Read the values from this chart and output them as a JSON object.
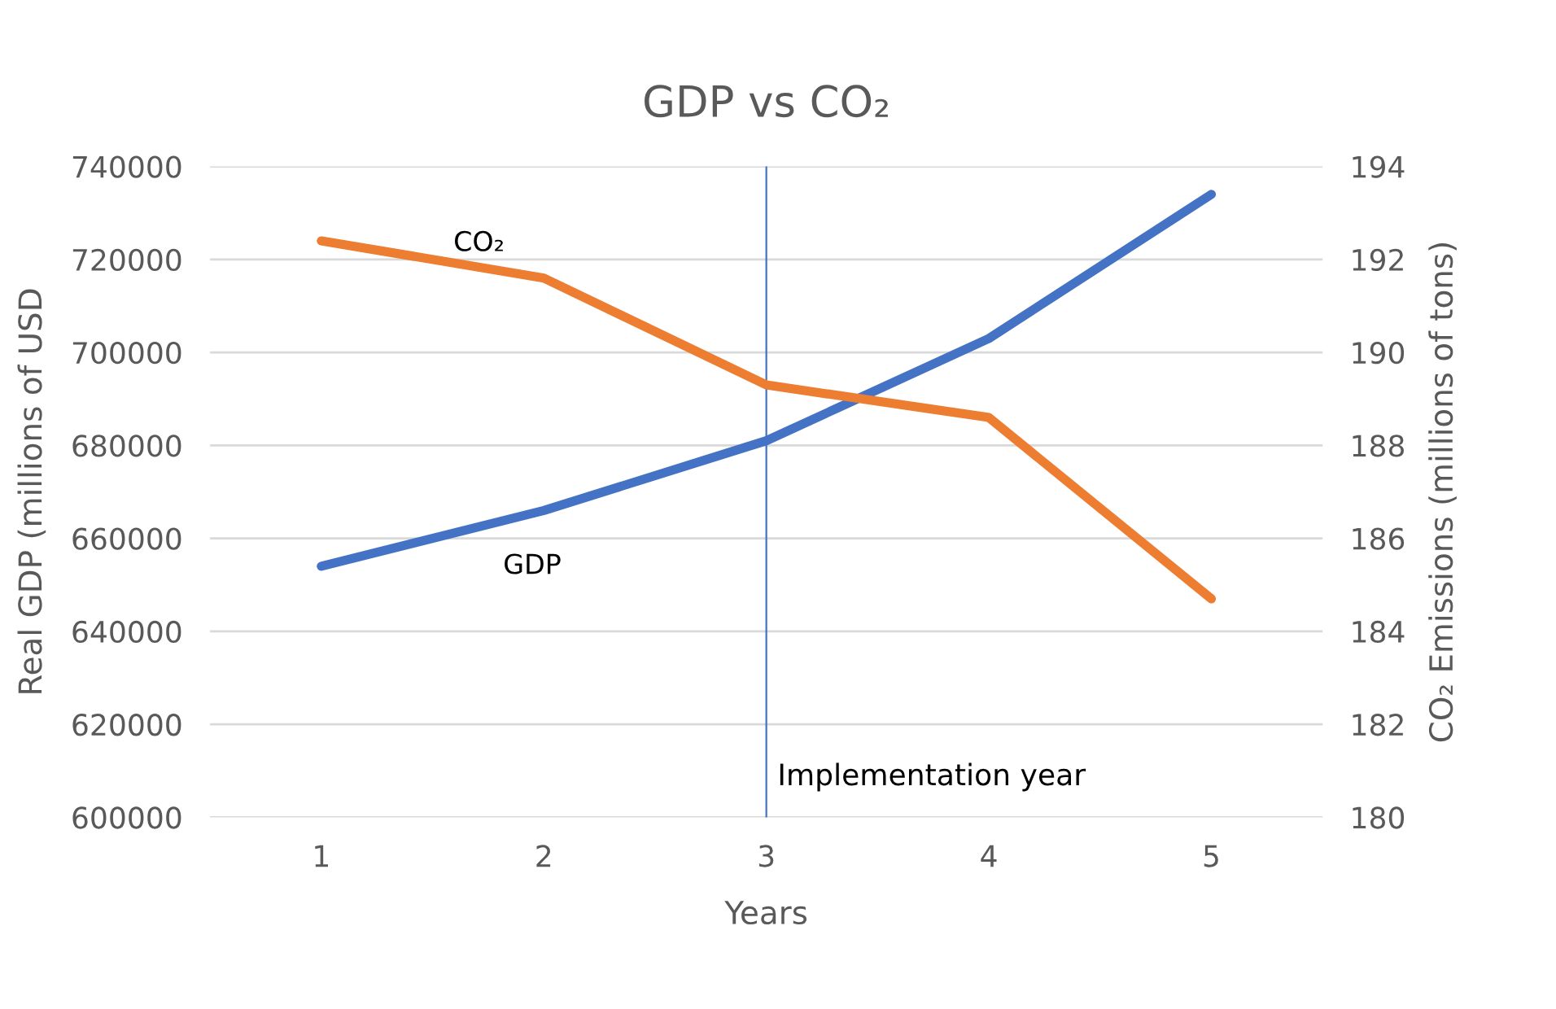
{
  "chart_data": {
    "type": "line",
    "title": "GDP vs CO₂",
    "xlabel": "Years",
    "ylabel": "Real GDP (millions of USD",
    "y2label": "CO₂ Emissions (millions of tons)",
    "x": [
      1,
      2,
      3,
      4,
      5
    ],
    "xlim": [
      0.5,
      5.5
    ],
    "xticks": [
      1,
      2,
      3,
      4,
      5
    ],
    "ylim": [
      600000,
      740000
    ],
    "yticks": [
      600000,
      620000,
      640000,
      660000,
      680000,
      700000,
      720000,
      740000
    ],
    "y2lim": [
      180,
      194
    ],
    "y2ticks": [
      180,
      182,
      184,
      186,
      188,
      190,
      192,
      194
    ],
    "series": [
      {
        "name": "GDP",
        "color": "#4472c4",
        "values": [
          654000,
          666000,
          681000,
          703000,
          734000
        ]
      },
      {
        "name": "CO₂",
        "color": "#ed7d31",
        "axis": "y2",
        "values": [
          192.4,
          191.6,
          189.3,
          188.6,
          184.7
        ]
      }
    ],
    "ref_lines": [
      {
        "axis": "x",
        "value": 3,
        "label": "Implementation year",
        "color": "#4472c4"
      }
    ],
    "grid": "y",
    "legend": false,
    "marker": "none",
    "line_style": "solid"
  }
}
